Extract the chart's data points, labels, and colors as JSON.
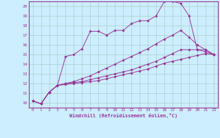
{
  "xlabel": "Windchill (Refroidissement éolien,°C)",
  "bg_color": "#cceeff",
  "line_color": "#993399",
  "grid_color": "#aacccc",
  "xmin": 0,
  "xmax": 23,
  "ymin": 10,
  "ymax": 20,
  "series": [
    [
      10.2,
      9.9,
      11.1,
      11.8,
      14.8,
      15.0,
      15.6,
      17.4,
      17.4,
      17.0,
      17.5,
      17.5,
      18.2,
      18.5,
      18.5,
      19.0,
      20.5,
      20.5,
      20.3,
      19.0,
      15.5,
      15.5,
      15.0
    ],
    [
      10.2,
      9.9,
      11.1,
      11.8,
      11.9,
      12.0,
      12.1,
      12.2,
      12.3,
      12.5,
      12.7,
      12.9,
      13.1,
      13.3,
      13.5,
      13.8,
      14.1,
      14.3,
      14.5,
      14.7,
      14.9,
      15.1,
      15.0
    ],
    [
      10.2,
      9.9,
      11.1,
      11.8,
      12.0,
      12.1,
      12.2,
      12.4,
      12.6,
      12.8,
      13.0,
      13.2,
      13.4,
      13.7,
      14.0,
      14.3,
      14.7,
      15.1,
      15.5,
      15.5,
      15.5,
      15.3,
      15.0
    ],
    [
      10.2,
      9.9,
      11.1,
      11.8,
      12.0,
      12.2,
      12.5,
      12.8,
      13.2,
      13.6,
      14.0,
      14.4,
      14.8,
      15.2,
      15.6,
      16.1,
      16.6,
      17.0,
      17.5,
      16.8,
      16.0,
      15.5,
      15.0
    ]
  ]
}
